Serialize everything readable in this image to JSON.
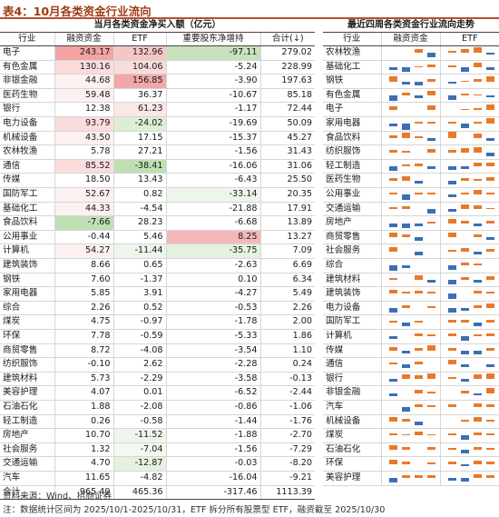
{
  "title": "表4：10月各类资金行业流向",
  "left_table": {
    "header": "当月各类资金净买入额（亿元）",
    "columns": [
      "行业",
      "融资资金",
      "ETF",
      "重要股东净增持",
      "合计(↓)"
    ],
    "rows": [
      {
        "name": "电子",
        "c1": "243.17",
        "c2": "132.96",
        "c3": "-97.11",
        "c4": "279.02",
        "h1": "#f3a3a3",
        "h2": "#f5c6c6",
        "h3": "#c7e2bd"
      },
      {
        "name": "有色金属",
        "c1": "130.16",
        "c2": "104.06",
        "c3": "-5.24",
        "c4": "228.99",
        "h1": "#fadcdc",
        "h2": "#fadcdc",
        "h3": ""
      },
      {
        "name": "非银金融",
        "c1": "44.68",
        "c2": "156.85",
        "c3": "-3.90",
        "c4": "197.63",
        "h1": "#fdf0f0",
        "h2": "#f0a8a8",
        "h3": ""
      },
      {
        "name": "医药生物",
        "c1": "59.48",
        "c2": "36.37",
        "c3": "-10.67",
        "c4": "85.18",
        "h1": "#fdf0f0",
        "h2": "",
        "h3": ""
      },
      {
        "name": "银行",
        "c1": "12.38",
        "c2": "61.23",
        "c3": "-1.17",
        "c4": "72.44",
        "h1": "",
        "h2": "#fce7e7",
        "h3": ""
      },
      {
        "name": "电力设备",
        "c1": "93.79",
        "c2": "-24.02",
        "c3": "-19.69",
        "c4": "50.09",
        "h1": "#fadcdc",
        "h2": "#dcefd5",
        "h3": ""
      },
      {
        "name": "机械设备",
        "c1": "43.50",
        "c2": "17.15",
        "c3": "-15.37",
        "c4": "45.27",
        "h1": "#fdf0f0",
        "h2": "",
        "h3": ""
      },
      {
        "name": "农林牧渔",
        "c1": "5.78",
        "c2": "27.21",
        "c3": "-1.56",
        "c4": "31.43",
        "h1": "",
        "h2": "",
        "h3": ""
      },
      {
        "name": "通信",
        "c1": "85.52",
        "c2": "-38.41",
        "c3": "-16.06",
        "c4": "31.06",
        "h1": "#fadcdc",
        "h2": "#bfe0b4",
        "h3": ""
      },
      {
        "name": "传媒",
        "c1": "18.50",
        "c2": "13.43",
        "c3": "-6.43",
        "c4": "25.50",
        "h1": "",
        "h2": "",
        "h3": ""
      },
      {
        "name": "国防军工",
        "c1": "52.67",
        "c2": "0.82",
        "c3": "-33.14",
        "c4": "20.35",
        "h1": "#fdf0f0",
        "h2": "",
        "h3": "#edf6ea"
      },
      {
        "name": "基础化工",
        "c1": "44.33",
        "c2": "-4.54",
        "c3": "-21.88",
        "c4": "17.91",
        "h1": "#fdf0f0",
        "h2": "",
        "h3": ""
      },
      {
        "name": "食品饮料",
        "c1": "-7.66",
        "c2": "28.23",
        "c3": "-6.68",
        "c4": "13.89",
        "h1": "#bfe0b4",
        "h2": "",
        "h3": ""
      },
      {
        "name": "公用事业",
        "c1": "-0.44",
        "c2": "5.46",
        "c3": "8.25",
        "c4": "13.27",
        "h1": "",
        "h2": "",
        "h3": "#f5b7b7"
      },
      {
        "name": "计算机",
        "c1": "54.27",
        "c2": "-11.44",
        "c3": "-35.75",
        "c4": "7.09",
        "h1": "#fdf0f0",
        "h2": "#edf6ea",
        "h3": "#e4f2df"
      },
      {
        "name": "建筑装饰",
        "c1": "8.66",
        "c2": "0.65",
        "c3": "-2.63",
        "c4": "6.69",
        "h1": "",
        "h2": "",
        "h3": ""
      },
      {
        "name": "钢铁",
        "c1": "7.60",
        "c2": "-1.37",
        "c3": "0.10",
        "c4": "6.34",
        "h1": "",
        "h2": "",
        "h3": ""
      },
      {
        "name": "家用电器",
        "c1": "5.85",
        "c2": "3.91",
        "c3": "-4.27",
        "c4": "5.49",
        "h1": "",
        "h2": "",
        "h3": ""
      },
      {
        "name": "综合",
        "c1": "2.26",
        "c2": "0.52",
        "c3": "-0.53",
        "c4": "2.26",
        "h1": "",
        "h2": "",
        "h3": ""
      },
      {
        "name": "煤炭",
        "c1": "4.75",
        "c2": "-0.97",
        "c3": "-1.78",
        "c4": "2.00",
        "h1": "",
        "h2": "",
        "h3": ""
      },
      {
        "name": "环保",
        "c1": "7.78",
        "c2": "-0.59",
        "c3": "-5.33",
        "c4": "1.86",
        "h1": "",
        "h2": "",
        "h3": ""
      },
      {
        "name": "商贸零售",
        "c1": "8.72",
        "c2": "-4.08",
        "c3": "-3.54",
        "c4": "1.10",
        "h1": "",
        "h2": "",
        "h3": ""
      },
      {
        "name": "纺织服饰",
        "c1": "-0.10",
        "c2": "2.62",
        "c3": "-2.28",
        "c4": "0.24",
        "h1": "",
        "h2": "",
        "h3": ""
      },
      {
        "name": "建筑材料",
        "c1": "5.73",
        "c2": "-2.29",
        "c3": "-3.58",
        "c4": "-0.13",
        "h1": "",
        "h2": "",
        "h3": ""
      },
      {
        "name": "美容护理",
        "c1": "4.07",
        "c2": "0.01",
        "c3": "-6.52",
        "c4": "-2.44",
        "h1": "",
        "h2": "",
        "h3": ""
      },
      {
        "name": "石油石化",
        "c1": "1.88",
        "c2": "-2.08",
        "c3": "-0.86",
        "c4": "-1.06",
        "h1": "",
        "h2": "",
        "h3": ""
      },
      {
        "name": "轻工制造",
        "c1": "0.26",
        "c2": "-0.58",
        "c3": "-1.44",
        "c4": "-1.76",
        "h1": "",
        "h2": "",
        "h3": ""
      },
      {
        "name": "房地产",
        "c1": "10.70",
        "c2": "-11.52",
        "c3": "-1.88",
        "c4": "-2.70",
        "h1": "",
        "h2": "#edf6ea",
        "h3": ""
      },
      {
        "name": "社会服务",
        "c1": "1.32",
        "c2": "-7.04",
        "c3": "-1.56",
        "c4": "-7.29",
        "h1": "",
        "h2": "#f3f9f1",
        "h3": ""
      },
      {
        "name": "交通运输",
        "c1": "4.70",
        "c2": "-12.87",
        "c3": "-0.03",
        "c4": "-8.20",
        "h1": "",
        "h2": "#e4f2df",
        "h3": ""
      },
      {
        "name": "汽车",
        "c1": "11.65",
        "c2": "-4.82",
        "c3": "-16.04",
        "c4": "-9.21",
        "h1": "",
        "h2": "",
        "h3": ""
      }
    ],
    "total": {
      "name": "合计",
      "c1": "965.49",
      "c2": "465.36",
      "c3": "-317.46",
      "c4": "1113.39"
    }
  },
  "right_table": {
    "header": "最近四周各类资金行业流向走势",
    "columns": [
      "行业",
      "融资资金",
      "ETF"
    ],
    "bar_colors": {
      "positive": "#e9792a",
      "negative": "#3a6fb5"
    },
    "rows": [
      {
        "name": "农林牧渔",
        "fin": [
          0,
          0,
          0.5,
          -0.5
        ],
        "etf": [
          0.3,
          0.5,
          0.7,
          -0.2
        ]
      },
      {
        "name": "基础化工",
        "fin": [
          -0.3,
          -0.5,
          0.1,
          0.3
        ],
        "etf": [
          0.2,
          -0.5,
          0.5,
          -0.3
        ]
      },
      {
        "name": "钢铁",
        "fin": [
          0.6,
          -0.4,
          -0.5,
          0.3
        ],
        "etf": [
          -0.3,
          0.1,
          0.3,
          0.6
        ]
      },
      {
        "name": "有色金属",
        "fin": [
          -0.6,
          0.3,
          -0.3,
          0.6
        ],
        "etf": [
          -0.5,
          0.2,
          0.1,
          -0.2
        ]
      },
      {
        "name": "电子",
        "fin": [
          0.4,
          0,
          0,
          0.5
        ],
        "etf": [
          0,
          0.1,
          0.2,
          0.6
        ]
      },
      {
        "name": "家用电器",
        "fin": [
          -0.3,
          -0.7,
          0.3,
          0.2
        ],
        "etf": [
          0.2,
          -0.5,
          0.2,
          0.7
        ]
      },
      {
        "name": "食品饮料",
        "fin": [
          0.3,
          0.6,
          0.2,
          -0.3
        ],
        "etf": [
          0.7,
          0,
          0.5,
          -0.3
        ]
      },
      {
        "name": "纺织服饰",
        "fin": [
          0.3,
          0.2,
          0,
          0.4
        ],
        "etf": [
          0.3,
          0.5,
          0.6,
          -0.5
        ]
      },
      {
        "name": "轻工制造",
        "fin": [
          -0.5,
          0.2,
          0.3,
          -0.3
        ],
        "etf": [
          -0.4,
          -0.3,
          0.4,
          0.5
        ]
      },
      {
        "name": "医药生物",
        "fin": [
          0.3,
          0.5,
          -0.4,
          0
        ],
        "etf": [
          -0.5,
          0.3,
          0.2,
          0.4
        ]
      },
      {
        "name": "公用事业",
        "fin": [
          0.2,
          -0.6,
          0.2,
          0.3
        ],
        "etf": [
          -0.3,
          0.3,
          0.6,
          0.2
        ]
      },
      {
        "name": "交通运输",
        "fin": [
          0.2,
          0.3,
          0,
          -0.5
        ],
        "etf": [
          -0.3,
          0.5,
          0.4,
          0.1
        ]
      },
      {
        "name": "房地产",
        "fin": [
          -0.5,
          -0.6,
          -0.4,
          0.2
        ],
        "etf": [
          0.5,
          0.3,
          -0.4,
          0.3
        ]
      },
      {
        "name": "商贸零售",
        "fin": [
          0.6,
          0.3,
          -0.4,
          0
        ],
        "etf": [
          0.6,
          0,
          0.3,
          -0.3
        ]
      },
      {
        "name": "社会服务",
        "fin": [
          0.5,
          0,
          -0.5,
          0
        ],
        "etf": [
          0.2,
          0.4,
          -0.4,
          0.3
        ]
      },
      {
        "name": "综合",
        "fin": [
          -0.6,
          -0.3,
          0,
          0
        ],
        "etf": [
          -0.5,
          0.4,
          0.3,
          0
        ]
      },
      {
        "name": "建筑材料",
        "fin": [
          0.2,
          0,
          0.5,
          -0.3
        ],
        "etf": [
          -0.6,
          0.3,
          -0.3,
          0.4
        ]
      },
      {
        "name": "建筑装饰",
        "fin": [
          0.5,
          0.3,
          0.4,
          0.3
        ],
        "etf": [
          -0.6,
          0,
          0.4,
          0.3
        ]
      },
      {
        "name": "电力设备",
        "fin": [
          -0.5,
          0.3,
          0,
          0.2
        ],
        "etf": [
          -0.5,
          -0.3,
          0.3,
          0.5
        ]
      },
      {
        "name": "国防军工",
        "fin": [
          0.2,
          -0.5,
          0.2,
          0
        ],
        "etf": [
          0.3,
          0.3,
          -0.5,
          0.3
        ]
      },
      {
        "name": "计算机",
        "fin": [
          -0.3,
          0,
          0.3,
          0.2
        ],
        "etf": [
          0.3,
          -0.5,
          0.2,
          0.4
        ]
      },
      {
        "name": "传媒",
        "fin": [
          0.4,
          -0.3,
          0.3,
          0.6
        ],
        "etf": [
          0.3,
          -0.5,
          -0.4,
          0.3
        ]
      },
      {
        "name": "通信",
        "fin": [
          0.3,
          -0.4,
          0.4,
          0
        ],
        "etf": [
          0.6,
          -0.3,
          0,
          -0.3
        ]
      },
      {
        "name": "银行",
        "fin": [
          -0.3,
          0.5,
          0.4,
          0.6
        ],
        "etf": [
          0.2,
          -0.3,
          0.5,
          0.6
        ]
      },
      {
        "name": "非银金融",
        "fin": [
          -0.4,
          0,
          0.4,
          0.2
        ],
        "etf": [
          0,
          0.3,
          -0.3,
          0.6
        ]
      },
      {
        "name": "汽车",
        "fin": [
          0,
          -0.5,
          0.3,
          0.2
        ],
        "etf": [
          0.3,
          0,
          0.5,
          0.3
        ]
      },
      {
        "name": "机械设备",
        "fin": [
          0.5,
          0.3,
          -0.5,
          0
        ],
        "etf": [
          0,
          0.2,
          0.5,
          0.2
        ]
      },
      {
        "name": "煤炭",
        "fin": [
          0.3,
          0.2,
          0.5,
          0.2
        ],
        "etf": [
          0.3,
          -0.5,
          0.4,
          0.3
        ]
      },
      {
        "name": "石油石化",
        "fin": [
          0.5,
          0.3,
          0,
          0.3
        ],
        "etf": [
          0.2,
          -0.4,
          0.3,
          0.2
        ]
      },
      {
        "name": "环保",
        "fin": [
          0.5,
          0.3,
          0,
          0.2
        ],
        "etf": [
          0.3,
          -0.3,
          0.4,
          0.3
        ]
      },
      {
        "name": "美容护理",
        "fin": [
          -0.5,
          0.3,
          0.4,
          0.3
        ],
        "etf": [
          -0.3,
          -0.4,
          0.5,
          0.3
        ]
      }
    ]
  },
  "notes": {
    "source": "资料来源：Wind、招商证券",
    "remark": "注：数据统计区间为 2025/10/1-2025/10/31，ETF 拆分所有股票型 ETF，融资截至 2025/10/30"
  }
}
